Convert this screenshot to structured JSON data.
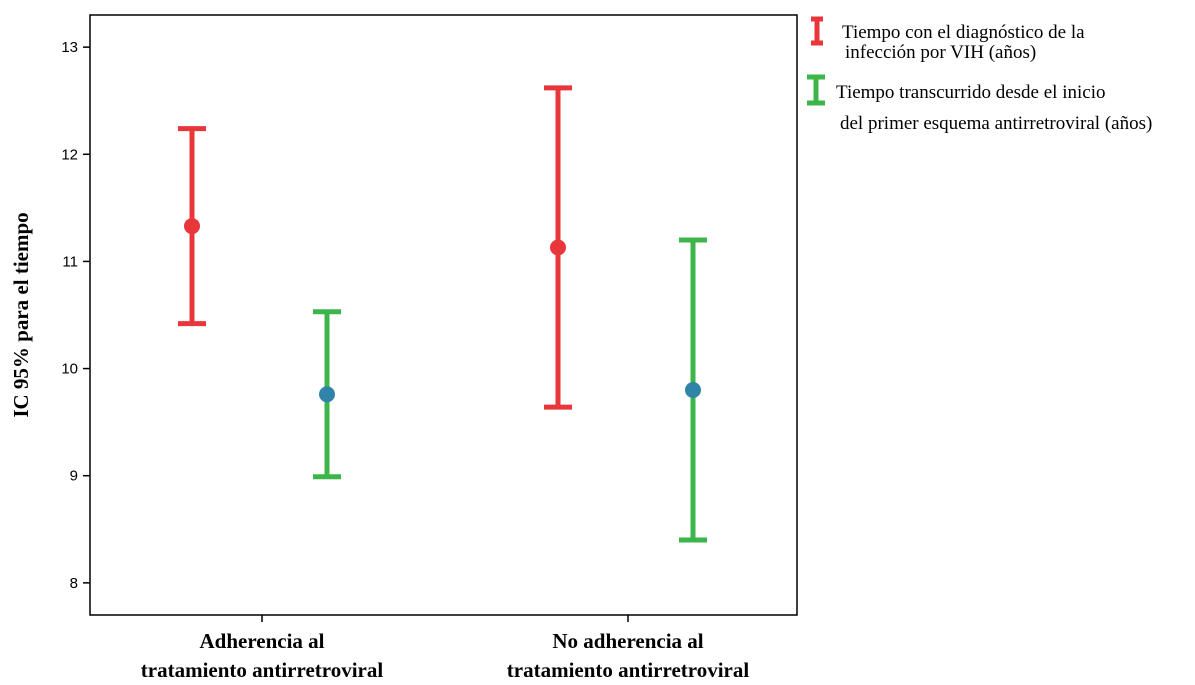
{
  "chart_data": {
    "type": "errorbar",
    "ylabel": "IC 95% para el tiempo",
    "ylim": [
      7.7,
      13.3
    ],
    "yticks": [
      8,
      9,
      10,
      11,
      12,
      13
    ],
    "categories": [
      [
        "Adherencia al",
        "tratamiento antirretroviral"
      ],
      [
        "No adherencia al",
        "tratamiento antirretroviral"
      ]
    ],
    "series": [
      {
        "name": [
          "Tiempo con el diagnóstico de la",
          "infección por VIH (años)"
        ],
        "color": "#e8363b",
        "point_color": "#e8363b",
        "means": [
          11.33,
          11.13
        ],
        "lower": [
          10.42,
          9.64
        ],
        "upper": [
          12.24,
          12.62
        ]
      },
      {
        "name": [
          "Tiempo transcurrido desde el inicio",
          "del primer esquema antirretroviral (años)"
        ],
        "color": "#3cb54a",
        "point_color": "#2f84a8",
        "means": [
          9.76,
          9.8
        ],
        "lower": [
          8.99,
          8.4
        ],
        "upper": [
          10.53,
          11.2
        ]
      }
    ],
    "legend_position": "top-right"
  }
}
